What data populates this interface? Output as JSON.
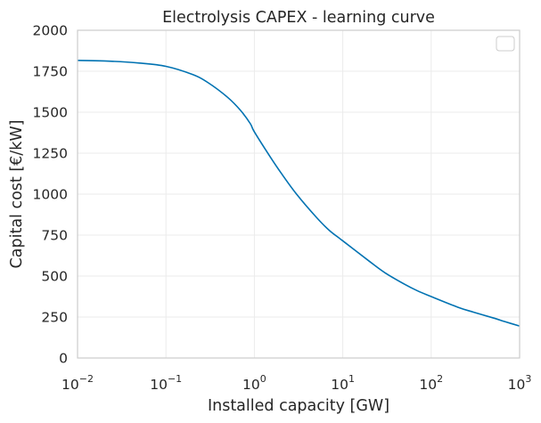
{
  "chart_data": {
    "type": "line",
    "title": "Electrolysis CAPEX - learning curve",
    "xlabel": "Installed capacity [GW]",
    "ylabel": "Capital cost [€/kW]",
    "x_scale": "log",
    "xlim": [
      0.01,
      1000
    ],
    "ylim": [
      0,
      2000
    ],
    "x_ticks": [
      {
        "value": 0.01,
        "base": "10",
        "exp": "−2"
      },
      {
        "value": 0.1,
        "base": "10",
        "exp": "−1"
      },
      {
        "value": 1,
        "base": "10",
        "exp": "0"
      },
      {
        "value": 10,
        "base": "10",
        "exp": "1"
      },
      {
        "value": 100,
        "base": "10",
        "exp": "2"
      },
      {
        "value": 1000,
        "base": "10",
        "exp": "3"
      }
    ],
    "y_ticks": [
      "0",
      "250",
      "500",
      "750",
      "1000",
      "1250",
      "1500",
      "1750",
      "2000"
    ],
    "grid": true,
    "legend": {
      "position": "top-right",
      "entries": []
    },
    "series": [
      {
        "color": "#0072b2",
        "x": [
          0.01,
          0.02,
          0.05,
          0.1,
          0.2,
          0.3,
          0.5,
          0.7,
          0.9,
          1,
          1.5,
          2,
          3,
          5,
          7,
          10,
          20,
          30,
          50,
          70,
          100,
          200,
          300,
          500,
          700,
          1000
        ],
        "y": [
          1816,
          1813,
          1800,
          1780,
          1730,
          1680,
          1590,
          1510,
          1430,
          1380,
          1230,
          1130,
          1000,
          860,
          780,
          715,
          590,
          520,
          450,
          410,
          375,
          310,
          280,
          245,
          220,
          195
        ]
      }
    ]
  }
}
